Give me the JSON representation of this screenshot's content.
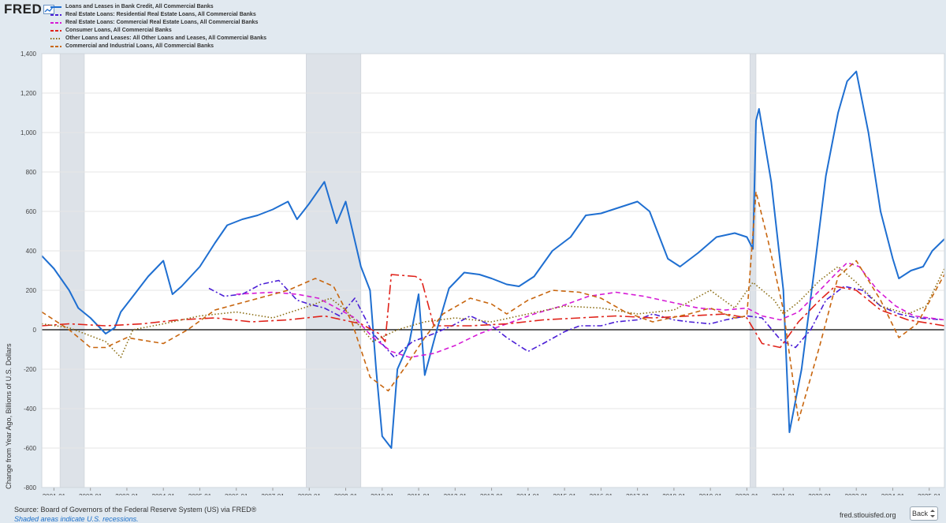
{
  "brand": {
    "name": "FRED",
    "icon": "line-chart-icon"
  },
  "footer": {
    "source": "Source: Board of Governors of the Federal Reserve System (US) via FRED®",
    "note": "Shaded areas indicate U.S. recessions.",
    "url": "fred.stlouisfed.org",
    "back_label": "Back",
    "back_icon": "expand-arrows-icon"
  },
  "chart_data": {
    "type": "line",
    "title": "",
    "xlabel": "",
    "ylabel": "Change from Year Ago, Billions of U.S. Dollars",
    "xlim": [
      "2000-09",
      "2025-06"
    ],
    "ylim": [
      -800,
      1400
    ],
    "yticks": [
      -800,
      -600,
      -400,
      -200,
      0,
      200,
      400,
      600,
      800,
      1000,
      1200,
      1400
    ],
    "ytick_labels": [
      "-800",
      "-600",
      "-400",
      "-200",
      "0",
      "200",
      "400",
      "600",
      "800",
      "1,000",
      "1,200",
      "1,400"
    ],
    "xticks": [
      "2001-01",
      "2002-01",
      "2003-01",
      "2004-01",
      "2005-01",
      "2006-01",
      "2007-01",
      "2008-01",
      "2009-01",
      "2010-01",
      "2011-01",
      "2012-01",
      "2013-01",
      "2014-01",
      "2015-01",
      "2016-01",
      "2017-01",
      "2018-01",
      "2019-01",
      "2020-01",
      "2021-01",
      "2022-01",
      "2023-01",
      "2024-01",
      "2025-01"
    ],
    "grid": true,
    "legend": "top-left",
    "recessions": [
      [
        "2001-03",
        "2001-11"
      ],
      [
        "2007-12",
        "2009-06"
      ],
      [
        "2020-02",
        "2020-04"
      ]
    ],
    "series": [
      {
        "name": "Loans and Leases in Bank Credit, All Commercial Banks",
        "color": "#1f6fd1",
        "dash": "solid",
        "points": [
          [
            "2000-09",
            375
          ],
          [
            "2001-01",
            310
          ],
          [
            "2001-06",
            200
          ],
          [
            "2001-09",
            110
          ],
          [
            "2002-01",
            60
          ],
          [
            "2002-06",
            -20
          ],
          [
            "2002-09",
            10
          ],
          [
            "2002-11",
            90
          ],
          [
            "2003-03",
            170
          ],
          [
            "2003-08",
            270
          ],
          [
            "2004-01",
            350
          ],
          [
            "2004-04",
            180
          ],
          [
            "2004-07",
            220
          ],
          [
            "2005-01",
            320
          ],
          [
            "2005-06",
            440
          ],
          [
            "2005-10",
            530
          ],
          [
            "2006-03",
            560
          ],
          [
            "2006-08",
            580
          ],
          [
            "2007-01",
            610
          ],
          [
            "2007-06",
            650
          ],
          [
            "2007-09",
            560
          ],
          [
            "2008-01",
            640
          ],
          [
            "2008-06",
            750
          ],
          [
            "2008-10",
            540
          ],
          [
            "2009-01",
            650
          ],
          [
            "2009-06",
            320
          ],
          [
            "2009-09",
            200
          ],
          [
            "2009-11",
            -200
          ],
          [
            "2010-01",
            -540
          ],
          [
            "2010-04",
            -600
          ],
          [
            "2010-06",
            -200
          ],
          [
            "2010-10",
            -60
          ],
          [
            "2011-01",
            180
          ],
          [
            "2011-03",
            -230
          ],
          [
            "2011-07",
            0
          ],
          [
            "2011-11",
            210
          ],
          [
            "2012-04",
            290
          ],
          [
            "2012-09",
            280
          ],
          [
            "2013-01",
            260
          ],
          [
            "2013-06",
            230
          ],
          [
            "2013-10",
            220
          ],
          [
            "2014-03",
            270
          ],
          [
            "2014-09",
            400
          ],
          [
            "2015-03",
            470
          ],
          [
            "2015-08",
            580
          ],
          [
            "2016-01",
            590
          ],
          [
            "2016-07",
            620
          ],
          [
            "2017-01",
            650
          ],
          [
            "2017-05",
            600
          ],
          [
            "2017-11",
            360
          ],
          [
            "2018-03",
            320
          ],
          [
            "2018-09",
            390
          ],
          [
            "2019-03",
            470
          ],
          [
            "2019-09",
            490
          ],
          [
            "2020-01",
            470
          ],
          [
            "2020-03",
            410
          ],
          [
            "2020-04",
            1060
          ],
          [
            "2020-05",
            1120
          ],
          [
            "2020-09",
            750
          ],
          [
            "2021-01",
            200
          ],
          [
            "2021-03",
            -520
          ],
          [
            "2021-07",
            -200
          ],
          [
            "2021-11",
            280
          ],
          [
            "2022-03",
            780
          ],
          [
            "2022-07",
            1100
          ],
          [
            "2022-10",
            1260
          ],
          [
            "2023-01",
            1310
          ],
          [
            "2023-05",
            1000
          ],
          [
            "2023-09",
            600
          ],
          [
            "2024-01",
            360
          ],
          [
            "2024-03",
            260
          ],
          [
            "2024-07",
            300
          ],
          [
            "2024-11",
            320
          ],
          [
            "2025-02",
            400
          ],
          [
            "2025-06",
            460
          ]
        ]
      },
      {
        "name": "Real Estate Loans: Residential Real Estate Loans, All Commercial Banks",
        "color": "#4b1fd6",
        "dash": "dashdot",
        "points": [
          [
            "2005-04",
            210
          ],
          [
            "2005-09",
            170
          ],
          [
            "2006-03",
            180
          ],
          [
            "2006-09",
            230
          ],
          [
            "2007-03",
            250
          ],
          [
            "2007-09",
            150
          ],
          [
            "2008-01",
            130
          ],
          [
            "2008-06",
            110
          ],
          [
            "2008-11",
            70
          ],
          [
            "2009-04",
            160
          ],
          [
            "2009-10",
            -20
          ],
          [
            "2010-05",
            -140
          ],
          [
            "2010-11",
            -60
          ],
          [
            "2011-06",
            -20
          ],
          [
            "2011-12",
            20
          ],
          [
            "2012-06",
            70
          ],
          [
            "2013-01",
            20
          ],
          [
            "2013-06",
            -40
          ],
          [
            "2014-01",
            -110
          ],
          [
            "2014-06",
            -70
          ],
          [
            "2015-01",
            -10
          ],
          [
            "2015-06",
            20
          ],
          [
            "2016-01",
            20
          ],
          [
            "2016-06",
            40
          ],
          [
            "2017-01",
            50
          ],
          [
            "2017-06",
            80
          ],
          [
            "2018-01",
            50
          ],
          [
            "2018-06",
            40
          ],
          [
            "2019-01",
            30
          ],
          [
            "2019-06",
            50
          ],
          [
            "2020-01",
            70
          ],
          [
            "2020-06",
            60
          ],
          [
            "2020-12",
            -50
          ],
          [
            "2021-05",
            -90
          ],
          [
            "2021-10",
            0
          ],
          [
            "2022-03",
            150
          ],
          [
            "2022-09",
            220
          ],
          [
            "2023-03",
            200
          ],
          [
            "2023-09",
            120
          ],
          [
            "2024-03",
            80
          ],
          [
            "2024-09",
            60
          ],
          [
            "2025-06",
            50
          ]
        ]
      },
      {
        "name": "Real Estate Loans: Commercial Real Estate Loans, All Commercial Banks",
        "color": "#d51ad5",
        "dash": "dashed",
        "points": [
          [
            "2006-01",
            180
          ],
          [
            "2007-01",
            190
          ],
          [
            "2007-09",
            180
          ],
          [
            "2008-04",
            160
          ],
          [
            "2008-10",
            110
          ],
          [
            "2009-04",
            60
          ],
          [
            "2009-10",
            -40
          ],
          [
            "2010-04",
            -110
          ],
          [
            "2010-10",
            -140
          ],
          [
            "2011-06",
            -120
          ],
          [
            "2012-01",
            -80
          ],
          [
            "2012-09",
            -20
          ],
          [
            "2013-06",
            30
          ],
          [
            "2014-03",
            80
          ],
          [
            "2014-12",
            120
          ],
          [
            "2015-09",
            170
          ],
          [
            "2016-06",
            190
          ],
          [
            "2017-03",
            170
          ],
          [
            "2017-12",
            140
          ],
          [
            "2018-09",
            110
          ],
          [
            "2019-06",
            100
          ],
          [
            "2020-01",
            110
          ],
          [
            "2020-06",
            70
          ],
          [
            "2020-12",
            50
          ],
          [
            "2021-06",
            90
          ],
          [
            "2022-01",
            200
          ],
          [
            "2022-06",
            280
          ],
          [
            "2022-10",
            340
          ],
          [
            "2023-02",
            320
          ],
          [
            "2023-08",
            200
          ],
          [
            "2024-02",
            120
          ],
          [
            "2024-08",
            70
          ],
          [
            "2025-06",
            50
          ]
        ]
      },
      {
        "name": "Consumer Loans, All Commercial Banks",
        "color": "#e0231b",
        "dash": "longdashdot",
        "points": [
          [
            "2000-09",
            20
          ],
          [
            "2001-06",
            30
          ],
          [
            "2002-06",
            20
          ],
          [
            "2003-06",
            30
          ],
          [
            "2004-06",
            50
          ],
          [
            "2005-06",
            60
          ],
          [
            "2006-06",
            40
          ],
          [
            "2007-06",
            50
          ],
          [
            "2008-06",
            70
          ],
          [
            "2009-06",
            30
          ],
          [
            "2009-12",
            -20
          ],
          [
            "2010-02",
            -60
          ],
          [
            "2010-04",
            280
          ],
          [
            "2010-12",
            270
          ],
          [
            "2011-02",
            250
          ],
          [
            "2011-06",
            20
          ],
          [
            "2012-06",
            20
          ],
          [
            "2013-06",
            30
          ],
          [
            "2014-06",
            50
          ],
          [
            "2015-06",
            60
          ],
          [
            "2016-06",
            70
          ],
          [
            "2017-06",
            60
          ],
          [
            "2018-06",
            70
          ],
          [
            "2019-06",
            80
          ],
          [
            "2020-01",
            60
          ],
          [
            "2020-06",
            -70
          ],
          [
            "2020-12",
            -90
          ],
          [
            "2021-06",
            40
          ],
          [
            "2022-01",
            150
          ],
          [
            "2022-06",
            220
          ],
          [
            "2023-01",
            200
          ],
          [
            "2023-09",
            100
          ],
          [
            "2024-06",
            50
          ],
          [
            "2025-06",
            20
          ]
        ]
      },
      {
        "name": "Other Loans and Leases: All Other Loans and Leases, All Commercial Banks",
        "color": "#8b6d14",
        "dash": "dotted",
        "points": [
          [
            "2000-09",
            30
          ],
          [
            "2001-06",
            10
          ],
          [
            "2002-06",
            -60
          ],
          [
            "2002-11",
            -140
          ],
          [
            "2003-03",
            0
          ],
          [
            "2004-01",
            30
          ],
          [
            "2005-01",
            70
          ],
          [
            "2006-01",
            90
          ],
          [
            "2007-01",
            60
          ],
          [
            "2008-01",
            120
          ],
          [
            "2008-08",
            160
          ],
          [
            "2009-01",
            100
          ],
          [
            "2009-10",
            -60
          ],
          [
            "2010-06",
            0
          ],
          [
            "2011-03",
            40
          ],
          [
            "2012-01",
            60
          ],
          [
            "2013-01",
            40
          ],
          [
            "2014-01",
            80
          ],
          [
            "2015-01",
            120
          ],
          [
            "2016-01",
            110
          ],
          [
            "2017-01",
            80
          ],
          [
            "2018-01",
            100
          ],
          [
            "2019-01",
            200
          ],
          [
            "2019-09",
            110
          ],
          [
            "2020-03",
            240
          ],
          [
            "2020-10",
            150
          ],
          [
            "2021-01",
            80
          ],
          [
            "2021-06",
            140
          ],
          [
            "2022-01",
            250
          ],
          [
            "2022-07",
            320
          ],
          [
            "2023-01",
            240
          ],
          [
            "2023-09",
            120
          ],
          [
            "2024-06",
            80
          ],
          [
            "2024-12",
            120
          ],
          [
            "2025-06",
            310
          ]
        ]
      },
      {
        "name": "Commercial and Industrial Loans, All Commercial Banks",
        "color": "#c8660f",
        "dash": "dashed",
        "points": [
          [
            "2000-09",
            90
          ],
          [
            "2001-06",
            0
          ],
          [
            "2002-01",
            -90
          ],
          [
            "2002-06",
            -90
          ],
          [
            "2003-01",
            -40
          ],
          [
            "2004-01",
            -70
          ],
          [
            "2004-09",
            0
          ],
          [
            "2005-06",
            100
          ],
          [
            "2006-06",
            150
          ],
          [
            "2007-06",
            200
          ],
          [
            "2008-03",
            260
          ],
          [
            "2008-09",
            220
          ],
          [
            "2009-03",
            40
          ],
          [
            "2009-09",
            -240
          ],
          [
            "2010-03",
            -310
          ],
          [
            "2010-09",
            -180
          ],
          [
            "2011-03",
            -40
          ],
          [
            "2011-09",
            80
          ],
          [
            "2012-06",
            160
          ],
          [
            "2013-01",
            130
          ],
          [
            "2013-06",
            80
          ],
          [
            "2014-01",
            150
          ],
          [
            "2014-09",
            200
          ],
          [
            "2015-06",
            190
          ],
          [
            "2016-01",
            160
          ],
          [
            "2016-09",
            90
          ],
          [
            "2017-06",
            40
          ],
          [
            "2018-06",
            80
          ],
          [
            "2019-01",
            110
          ],
          [
            "2019-09",
            60
          ],
          [
            "2020-01",
            70
          ],
          [
            "2020-04",
            700
          ],
          [
            "2020-08",
            450
          ],
          [
            "2021-01",
            100
          ],
          [
            "2021-06",
            -460
          ],
          [
            "2022-01",
            -80
          ],
          [
            "2022-07",
            270
          ],
          [
            "2023-01",
            350
          ],
          [
            "2023-09",
            150
          ],
          [
            "2024-03",
            -40
          ],
          [
            "2024-09",
            30
          ],
          [
            "2025-06",
            280
          ]
        ]
      }
    ]
  }
}
